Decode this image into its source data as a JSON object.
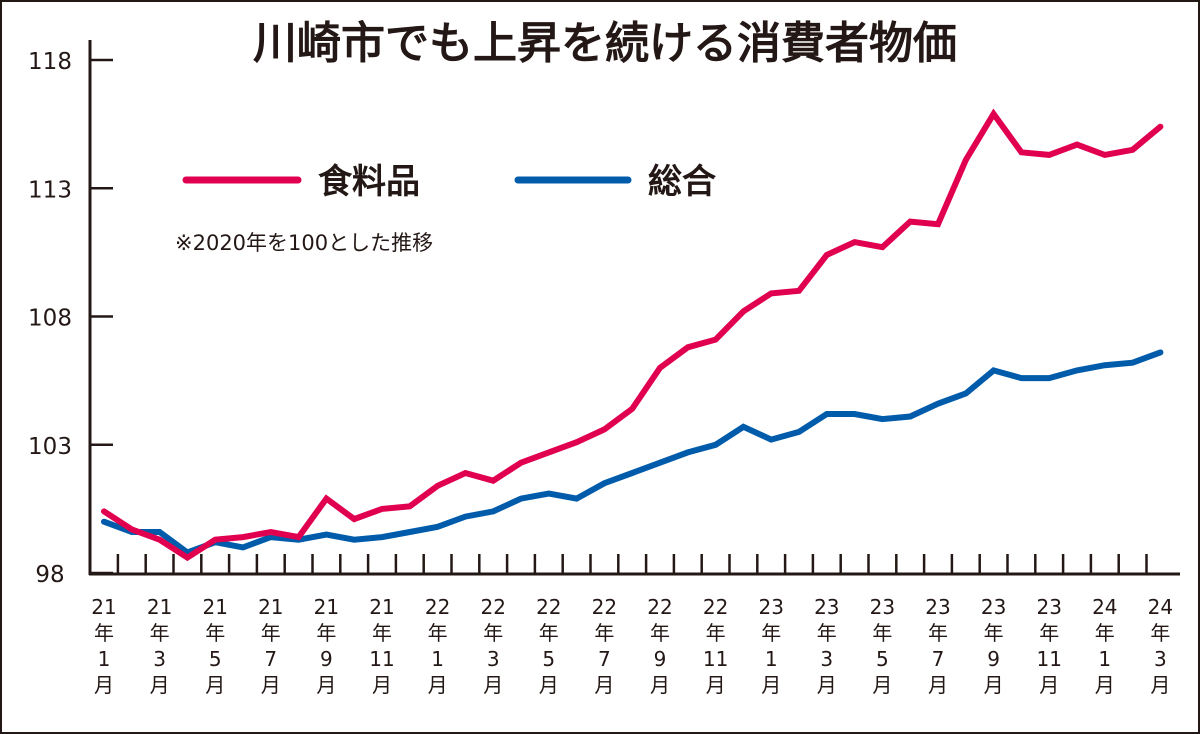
{
  "chart_data": {
    "type": "line",
    "title": "川崎市でも上昇を続ける消費者物価",
    "note": "※2020年を100とした推移",
    "xlabel": "",
    "ylabel": "",
    "ylim": [
      98,
      118
    ],
    "yticks": [
      "98",
      "103",
      "108",
      "113",
      "118"
    ],
    "x_labels": [
      [
        "21",
        "年",
        "1",
        "月"
      ],
      [
        "21",
        "年",
        "3",
        "月"
      ],
      [
        "21",
        "年",
        "5",
        "月"
      ],
      [
        "21",
        "年",
        "7",
        "月"
      ],
      [
        "21",
        "年",
        "9",
        "月"
      ],
      [
        "21",
        "年",
        "11",
        "月"
      ],
      [
        "22",
        "年",
        "1",
        "月"
      ],
      [
        "22",
        "年",
        "3",
        "月"
      ],
      [
        "22",
        "年",
        "5",
        "月"
      ],
      [
        "22",
        "年",
        "7",
        "月"
      ],
      [
        "22",
        "年",
        "9",
        "月"
      ],
      [
        "22",
        "年",
        "11",
        "月"
      ],
      [
        "23",
        "年",
        "1",
        "月"
      ],
      [
        "23",
        "年",
        "3",
        "月"
      ],
      [
        "23",
        "年",
        "5",
        "月"
      ],
      [
        "23",
        "年",
        "7",
        "月"
      ],
      [
        "23",
        "年",
        "9",
        "月"
      ],
      [
        "23",
        "年",
        "11",
        "月"
      ],
      [
        "24",
        "年",
        "1",
        "月"
      ],
      [
        "24",
        "年",
        "3",
        "月"
      ]
    ],
    "months": 39,
    "legend_position": "top-left",
    "series": [
      {
        "name": "食料品",
        "color": "#e0004f",
        "values": [
          100.4,
          99.7,
          99.3,
          98.6,
          99.3,
          99.4,
          99.6,
          99.4,
          100.9,
          100.1,
          100.5,
          100.6,
          101.4,
          101.9,
          101.6,
          102.3,
          102.7,
          103.1,
          103.6,
          104.4,
          106.0,
          106.8,
          107.1,
          108.2,
          108.9,
          109.0,
          110.4,
          110.9,
          110.7,
          111.7,
          111.6,
          114.1,
          115.9,
          114.4,
          114.3,
          114.7,
          114.3,
          114.5,
          115.4
        ]
      },
      {
        "name": "総合",
        "color": "#005bab",
        "values": [
          100.0,
          99.6,
          99.6,
          98.8,
          99.2,
          99.0,
          99.4,
          99.3,
          99.5,
          99.3,
          99.4,
          99.6,
          99.8,
          100.2,
          100.4,
          100.9,
          101.1,
          100.9,
          101.5,
          101.9,
          102.3,
          102.7,
          103.0,
          103.7,
          103.2,
          103.5,
          104.2,
          104.2,
          104.0,
          104.1,
          104.6,
          105.0,
          105.9,
          105.6,
          105.6,
          105.9,
          106.1,
          106.2,
          106.6
        ]
      }
    ]
  }
}
